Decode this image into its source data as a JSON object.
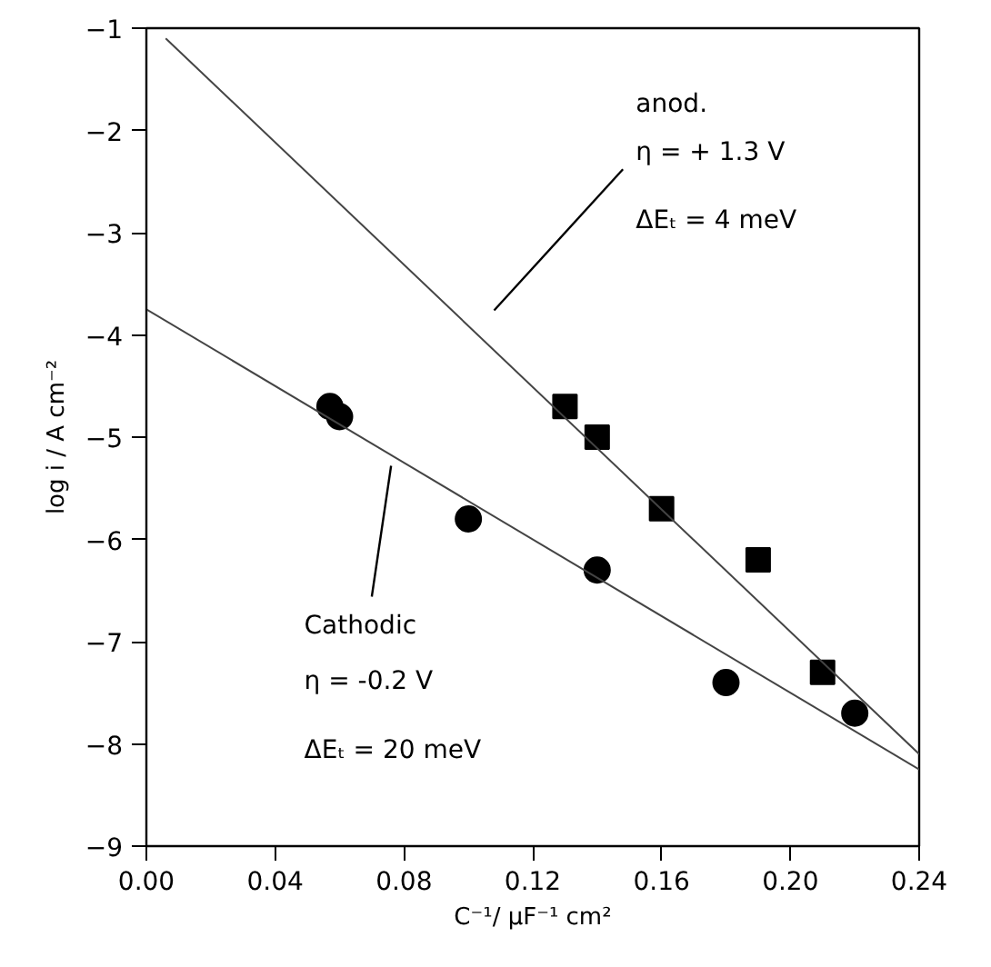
{
  "chart_data": {
    "type": "scatter",
    "xlabel": "C⁻¹/ μF⁻¹ cm²",
    "ylabel": "log i / A cm⁻²",
    "xlim": [
      0,
      0.24
    ],
    "ylim": [
      -9,
      -1
    ],
    "xticks": [
      {
        "value": 0,
        "label": "0.00"
      },
      {
        "value": 0.04,
        "label": "0.04"
      },
      {
        "value": 0.08,
        "label": "0.08"
      },
      {
        "value": 0.12,
        "label": "0.12"
      },
      {
        "value": 0.16,
        "label": "0.16"
      },
      {
        "value": 0.2,
        "label": "0.20"
      },
      {
        "value": 0.24,
        "label": "0.24"
      }
    ],
    "yticks": [
      -9,
      -8,
      -7,
      -6,
      -5,
      -4,
      -3,
      -2,
      -1
    ],
    "grid": false,
    "series": [
      {
        "marker": "circle",
        "color": "#000000",
        "x": [
          0.057,
          0.06,
          0.1,
          0.14,
          0.18,
          0.22
        ],
        "values": [
          -4.7,
          -4.8,
          -5.8,
          -6.3,
          -7.4,
          -7.7
        ]
      },
      {
        "marker": "square",
        "color": "#000000",
        "x": [
          0.13,
          0.14,
          0.16,
          0.19,
          0.21
        ],
        "values": [
          -4.7,
          -5.0,
          -5.7,
          -6.2,
          -7.3
        ]
      },
      {
        "type": "line",
        "color": "#444444",
        "x": [
          0.006,
          0.24
        ],
        "values": [
          -1.1,
          -8.1
        ]
      },
      {
        "type": "line",
        "color": "#444444",
        "x": [
          0.0,
          0.24
        ],
        "values": [
          -3.75,
          -8.25
        ]
      }
    ],
    "annotations": [
      "anod.",
      "η = + 1.3 V",
      "ΔEₜ = 4 meV",
      "Cathodic",
      "η = -0.2 V",
      "ΔEₜ = 20 meV"
    ]
  }
}
